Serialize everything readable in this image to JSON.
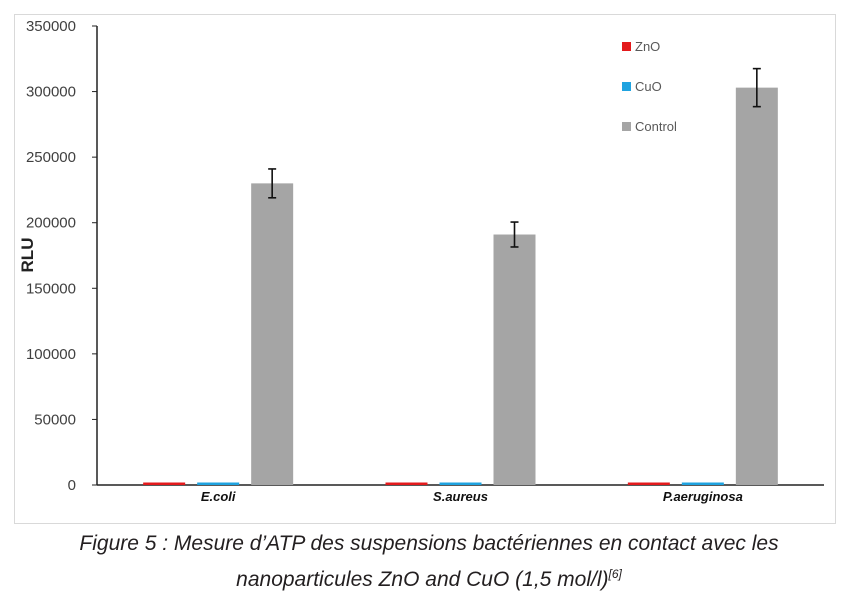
{
  "chart_data": {
    "type": "bar",
    "categories": [
      "E.coli",
      "S.aureus",
      "P.aeruginosa"
    ],
    "series": [
      {
        "name": "ZnO",
        "color": "#e31a1c",
        "values": [
          1200,
          1200,
          1200
        ],
        "errors": [
          0,
          0,
          0
        ]
      },
      {
        "name": "CuO",
        "color": "#1fa3e0",
        "values": [
          1200,
          1200,
          1200
        ],
        "errors": [
          0,
          0,
          0
        ]
      },
      {
        "name": "Control",
        "color": "#a5a5a5",
        "values": [
          230000,
          191000,
          303000
        ],
        "errors": [
          11000,
          9500,
          14500
        ]
      }
    ],
    "ylabel": "RLU",
    "xlabel": "",
    "ylim": [
      0,
      350000
    ],
    "yticks": [
      0,
      50000,
      100000,
      150000,
      200000,
      250000,
      300000,
      350000
    ],
    "ytick_labels": [
      "0",
      "50000",
      "100000",
      "150000",
      "200000",
      "250000",
      "300000",
      "350000"
    ],
    "legend_position": "top-right",
    "grid": false
  },
  "caption": {
    "line1": "Figure 5 : Mesure d’ATP des suspensions bactériennes en contact avec les",
    "line2": "nanoparticules ZnO and CuO (1,5 mol/l)",
    "ref": "[6]"
  }
}
